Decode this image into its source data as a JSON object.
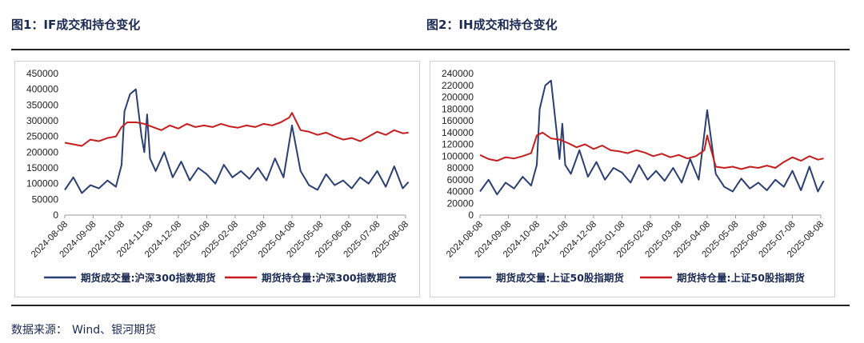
{
  "figures": {
    "left_title": "图1：IF成交和持仓变化",
    "right_title": "图2：IH成交和持仓变化"
  },
  "source": {
    "label": "数据来源：",
    "value": "Wind、银河期货"
  },
  "colors": {
    "volume": "#2b3f73",
    "open_interest": "#c51d1d",
    "axis": "#999999"
  },
  "chart_data": [
    {
      "type": "line",
      "x_ticks": [
        "2024-08-08",
        "2024-09-08",
        "2024-10-08",
        "2024-11-08",
        "2024-12-08",
        "2025-01-08",
        "2025-02-08",
        "2025-03-08",
        "2025-04-08",
        "2025-05-08",
        "2025-06-08",
        "2025-07-08",
        "2025-08-08"
      ],
      "ylim": [
        0,
        450000
      ],
      "y_ticks": [
        "0",
        "50000",
        "100000",
        "150000",
        "200000",
        "250000",
        "300000",
        "350000",
        "400000",
        "450000"
      ],
      "series": [
        {
          "name": "期货成交量:沪深300指数期货",
          "color": "#2b3f73",
          "x": [
            0,
            0.3,
            0.6,
            0.9,
            1.2,
            1.5,
            1.8,
            2.0,
            2.1,
            2.3,
            2.5,
            2.7,
            2.8,
            2.9,
            3.0,
            3.2,
            3.5,
            3.8,
            4.1,
            4.4,
            4.7,
            5.0,
            5.3,
            5.6,
            5.9,
            6.2,
            6.5,
            6.8,
            7.1,
            7.4,
            7.7,
            8.0,
            8.3,
            8.6,
            8.9,
            9.2,
            9.5,
            9.8,
            10.1,
            10.4,
            10.7,
            11.0,
            11.3,
            11.6,
            11.9,
            12.1
          ],
          "values": [
            80000,
            120000,
            70000,
            95000,
            85000,
            110000,
            90000,
            160000,
            330000,
            385000,
            400000,
            250000,
            200000,
            320000,
            180000,
            140000,
            200000,
            120000,
            170000,
            110000,
            150000,
            130000,
            100000,
            160000,
            120000,
            140000,
            115000,
            150000,
            110000,
            180000,
            120000,
            285000,
            140000,
            95000,
            80000,
            130000,
            95000,
            110000,
            85000,
            120000,
            100000,
            140000,
            90000,
            155000,
            85000,
            105000
          ]
        },
        {
          "name": "期货持仓量:沪深300指数期货",
          "color": "#c51d1d",
          "x": [
            0,
            0.3,
            0.6,
            0.9,
            1.2,
            1.5,
            1.8,
            2.0,
            2.2,
            2.5,
            2.8,
            3.1,
            3.4,
            3.7,
            4.0,
            4.3,
            4.6,
            4.9,
            5.2,
            5.5,
            5.8,
            6.1,
            6.4,
            6.7,
            7.0,
            7.3,
            7.6,
            7.9,
            8.0,
            8.3,
            8.6,
            8.9,
            9.2,
            9.5,
            9.8,
            10.1,
            10.4,
            10.7,
            11.0,
            11.3,
            11.6,
            11.9,
            12.1
          ],
          "values": [
            230000,
            225000,
            220000,
            240000,
            235000,
            245000,
            250000,
            280000,
            295000,
            295000,
            290000,
            280000,
            270000,
            285000,
            275000,
            290000,
            280000,
            285000,
            280000,
            290000,
            282000,
            278000,
            285000,
            280000,
            290000,
            285000,
            295000,
            310000,
            325000,
            270000,
            265000,
            255000,
            262000,
            250000,
            240000,
            245000,
            235000,
            250000,
            265000,
            255000,
            270000,
            260000,
            262000
          ]
        }
      ]
    },
    {
      "type": "line",
      "x_ticks": [
        "2024-08-08",
        "2024-09-08",
        "2024-10-08",
        "2024-11-08",
        "2024-12-08",
        "2025-01-08",
        "2025-02-08",
        "2025-03-08",
        "2025-04-08",
        "2025-05-08",
        "2025-06-08",
        "2025-07-08",
        "2025-08-08"
      ],
      "ylim": [
        0,
        240000
      ],
      "y_ticks": [
        "0",
        "20000",
        "40000",
        "60000",
        "80000",
        "100000",
        "120000",
        "140000",
        "160000",
        "180000",
        "200000",
        "220000",
        "240000"
      ],
      "series": [
        {
          "name": "期货成交量:上证50股指期货",
          "color": "#2b3f73",
          "x": [
            0,
            0.3,
            0.6,
            0.9,
            1.2,
            1.5,
            1.8,
            2.0,
            2.1,
            2.3,
            2.5,
            2.7,
            2.8,
            2.9,
            3.0,
            3.2,
            3.5,
            3.8,
            4.1,
            4.4,
            4.7,
            5.0,
            5.3,
            5.6,
            5.9,
            6.2,
            6.5,
            6.8,
            7.1,
            7.4,
            7.7,
            8.0,
            8.3,
            8.6,
            8.9,
            9.2,
            9.5,
            9.8,
            10.1,
            10.4,
            10.7,
            11.0,
            11.3,
            11.6,
            11.9,
            12.1
          ],
          "values": [
            40000,
            60000,
            35000,
            55000,
            45000,
            65000,
            50000,
            85000,
            180000,
            220000,
            228000,
            140000,
            95000,
            155000,
            85000,
            70000,
            110000,
            65000,
            90000,
            60000,
            80000,
            72000,
            55000,
            85000,
            60000,
            75000,
            58000,
            80000,
            55000,
            95000,
            60000,
            178000,
            70000,
            48000,
            40000,
            62000,
            45000,
            55000,
            42000,
            60000,
            48000,
            75000,
            42000,
            82000,
            40000,
            58000
          ]
        },
        {
          "name": "期货持仓量:上证50股指期货",
          "color": "#c51d1d",
          "x": [
            0,
            0.3,
            0.6,
            0.9,
            1.2,
            1.5,
            1.8,
            2.0,
            2.2,
            2.5,
            2.8,
            3.1,
            3.4,
            3.7,
            4.0,
            4.3,
            4.6,
            4.9,
            5.2,
            5.5,
            5.8,
            6.1,
            6.4,
            6.7,
            7.0,
            7.3,
            7.6,
            7.9,
            8.0,
            8.3,
            8.6,
            8.9,
            9.2,
            9.5,
            9.8,
            10.1,
            10.4,
            10.7,
            11.0,
            11.3,
            11.6,
            11.9,
            12.1
          ],
          "values": [
            102000,
            95000,
            92000,
            98000,
            96000,
            100000,
            105000,
            135000,
            140000,
            130000,
            128000,
            122000,
            115000,
            120000,
            112000,
            118000,
            110000,
            108000,
            105000,
            110000,
            106000,
            100000,
            104000,
            98000,
            102000,
            96000,
            100000,
            110000,
            135000,
            82000,
            80000,
            82000,
            78000,
            82000,
            80000,
            84000,
            80000,
            90000,
            98000,
            92000,
            100000,
            94000,
            96000
          ]
        }
      ]
    }
  ]
}
